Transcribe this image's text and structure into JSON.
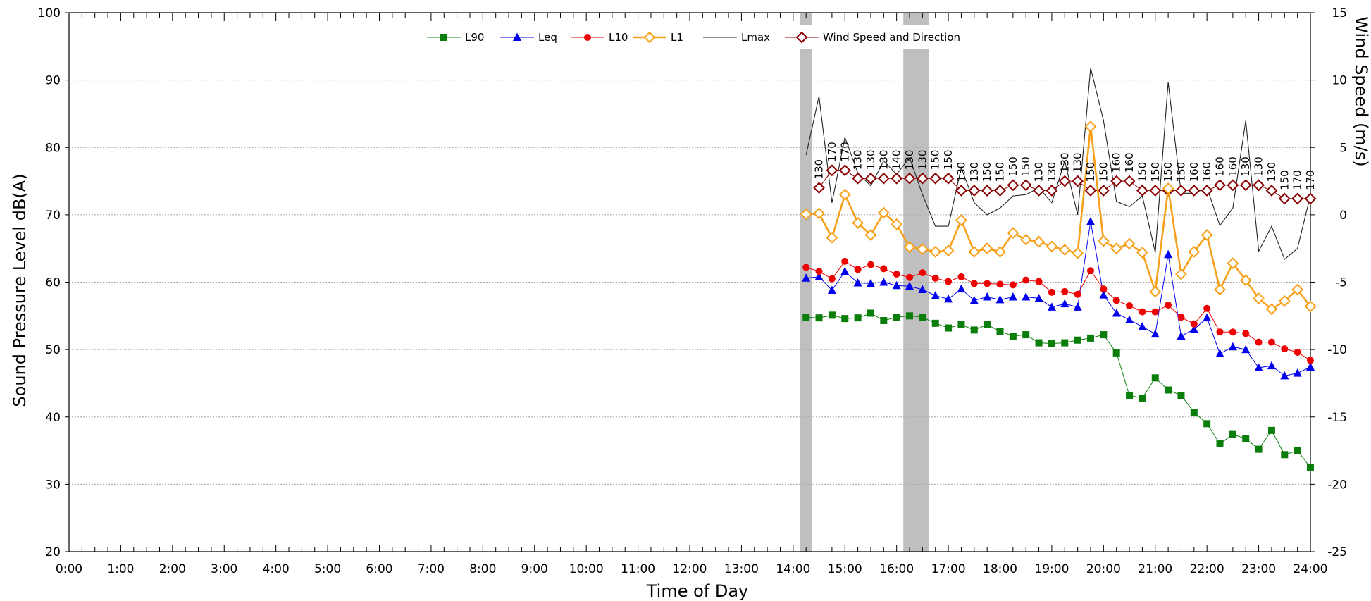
{
  "chart_data": {
    "type": "line",
    "xlabel": "Time of Day",
    "ylabel": "Sound Pressure Level dB(A)",
    "y2label": "Wind Speed (m/s)",
    "ylim": [
      20,
      100
    ],
    "y2lim": [
      -25,
      15
    ],
    "xlim": [
      0,
      24
    ],
    "yticks": [
      "20",
      "30",
      "40",
      "50",
      "60",
      "70",
      "80",
      "90",
      "100"
    ],
    "y2ticks": [
      "-25",
      "-20",
      "-15",
      "-10",
      "-5",
      "0",
      "5",
      "10",
      "15"
    ],
    "xticks": [
      "0:00",
      "1:00",
      "2:00",
      "3:00",
      "4:00",
      "5:00",
      "6:00",
      "7:00",
      "8:00",
      "9:00",
      "10:00",
      "11:00",
      "12:00",
      "13:00",
      "14:00",
      "15:00",
      "16:00",
      "17:00",
      "18:00",
      "19:00",
      "20:00",
      "21:00",
      "22:00",
      "23:00",
      "24:00"
    ],
    "grid": true,
    "legend_position": "top-center",
    "shaded_periods": [
      [
        14.13,
        14.37
      ],
      [
        16.13,
        16.62
      ]
    ],
    "x": [
      14.25,
      14.5,
      14.75,
      15.0,
      15.25,
      15.5,
      15.75,
      16.0,
      16.25,
      16.5,
      16.75,
      17.0,
      17.25,
      17.5,
      17.75,
      18.0,
      18.25,
      18.5,
      18.75,
      19.0,
      19.25,
      19.5,
      19.75,
      20.0,
      20.25,
      20.5,
      20.75,
      21.0,
      21.25,
      21.5,
      21.75,
      22.0,
      22.25,
      22.5,
      22.75,
      23.0,
      23.25,
      23.5,
      23.75,
      24.0
    ],
    "series": [
      {
        "name": "L90",
        "color": "#0a7d0a",
        "marker": "square",
        "axis": "left",
        "values": [
          54.8,
          54.7,
          55.1,
          54.6,
          54.7,
          55.4,
          54.3,
          54.8,
          55.0,
          54.8,
          53.9,
          53.2,
          53.7,
          52.9,
          53.7,
          52.7,
          52.0,
          52.2,
          51.0,
          50.9,
          51.0,
          51.4,
          51.7,
          52.2,
          49.5,
          43.2,
          42.8,
          45.8,
          44.0,
          43.2,
          40.7,
          39.0,
          36.0,
          37.4,
          36.8,
          35.2,
          38.0,
          34.4,
          35.0,
          32.5
        ]
      },
      {
        "name": "Leq",
        "color": "#0000ee",
        "marker": "triangle",
        "axis": "left",
        "values": [
          60.6,
          60.8,
          58.8,
          61.6,
          59.9,
          59.8,
          60.0,
          59.5,
          59.4,
          58.9,
          58.0,
          57.5,
          59.0,
          57.3,
          57.8,
          57.4,
          57.8,
          57.8,
          57.6,
          56.3,
          56.8,
          56.3,
          69.0,
          58.1,
          55.4,
          54.4,
          53.4,
          52.3,
          64.1,
          52.0,
          53.0,
          54.7,
          49.4,
          50.4,
          50.0,
          47.3,
          47.6,
          46.1,
          46.5,
          47.4
        ]
      },
      {
        "name": "L10",
        "color": "#ee0000",
        "marker": "circle",
        "axis": "left",
        "values": [
          62.2,
          61.6,
          60.5,
          63.1,
          61.9,
          62.6,
          62.0,
          61.2,
          60.7,
          61.4,
          60.6,
          60.1,
          60.8,
          59.8,
          59.8,
          59.7,
          59.6,
          60.3,
          60.1,
          58.5,
          58.6,
          58.2,
          61.7,
          59.0,
          57.3,
          56.5,
          55.6,
          55.6,
          56.6,
          54.8,
          53.8,
          56.1,
          52.6,
          52.6,
          52.4,
          51.1,
          51.1,
          50.1,
          49.6,
          48.4
        ]
      },
      {
        "name": "L1",
        "color": "#f7a11a",
        "marker": "diamond-open",
        "axis": "left",
        "values": [
          70.1,
          70.2,
          66.6,
          73.0,
          68.8,
          67.0,
          70.3,
          68.6,
          65.2,
          64.9,
          64.5,
          64.7,
          69.2,
          64.5,
          65.0,
          64.5,
          67.3,
          66.3,
          66.0,
          65.3,
          64.8,
          64.3,
          83.1,
          66.1,
          65.0,
          65.7,
          64.4,
          58.6,
          73.9,
          61.2,
          64.5,
          67.0,
          58.9,
          62.8,
          60.3,
          57.6,
          56.0,
          57.2,
          58.9,
          56.4
        ]
      },
      {
        "name": "Lmax",
        "color": "#222222",
        "marker": "none",
        "axis": "left",
        "values": [
          78.9,
          87.6,
          71.8,
          81.5,
          76.2,
          74.3,
          78.0,
          76.0,
          78.5,
          73.0,
          68.3,
          68.3,
          77.0,
          71.8,
          70.0,
          71.0,
          72.8,
          73.0,
          74.0,
          71.8,
          78.0,
          70.0,
          91.8,
          84.0,
          72.0,
          71.2,
          72.8,
          64.4,
          89.7,
          73.2,
          73.2,
          74.0,
          68.4,
          71.0,
          84.0,
          64.6,
          68.3,
          63.4,
          65.0,
          72.9
        ]
      },
      {
        "name": "Wind Speed and Direction",
        "color": "#8b0000",
        "marker": "diamond-open",
        "axis": "right",
        "values": [
          null,
          2.0,
          3.3,
          3.3,
          2.7,
          2.7,
          2.7,
          2.7,
          2.7,
          2.7,
          2.7,
          2.7,
          1.8,
          1.8,
          1.8,
          1.8,
          2.2,
          2.2,
          1.8,
          1.8,
          2.5,
          2.5,
          1.8,
          1.8,
          2.5,
          2.5,
          1.8,
          1.8,
          1.8,
          1.8,
          1.8,
          1.8,
          2.2,
          2.2,
          2.2,
          2.2,
          1.8,
          1.2,
          1.2,
          1.2
        ],
        "labels": [
          null,
          "130",
          "170",
          "170",
          "130",
          "130",
          "130",
          "140",
          "130",
          "130",
          "150",
          "150",
          "130",
          "130",
          "150",
          "150",
          "150",
          "150",
          "130",
          "130",
          "130",
          "130",
          "150",
          "150",
          "160",
          "160",
          "150",
          "150",
          "150",
          "150",
          "160",
          "160",
          "160",
          "160",
          "130",
          "130",
          "130",
          "150",
          "170",
          "170"
        ]
      }
    ]
  }
}
